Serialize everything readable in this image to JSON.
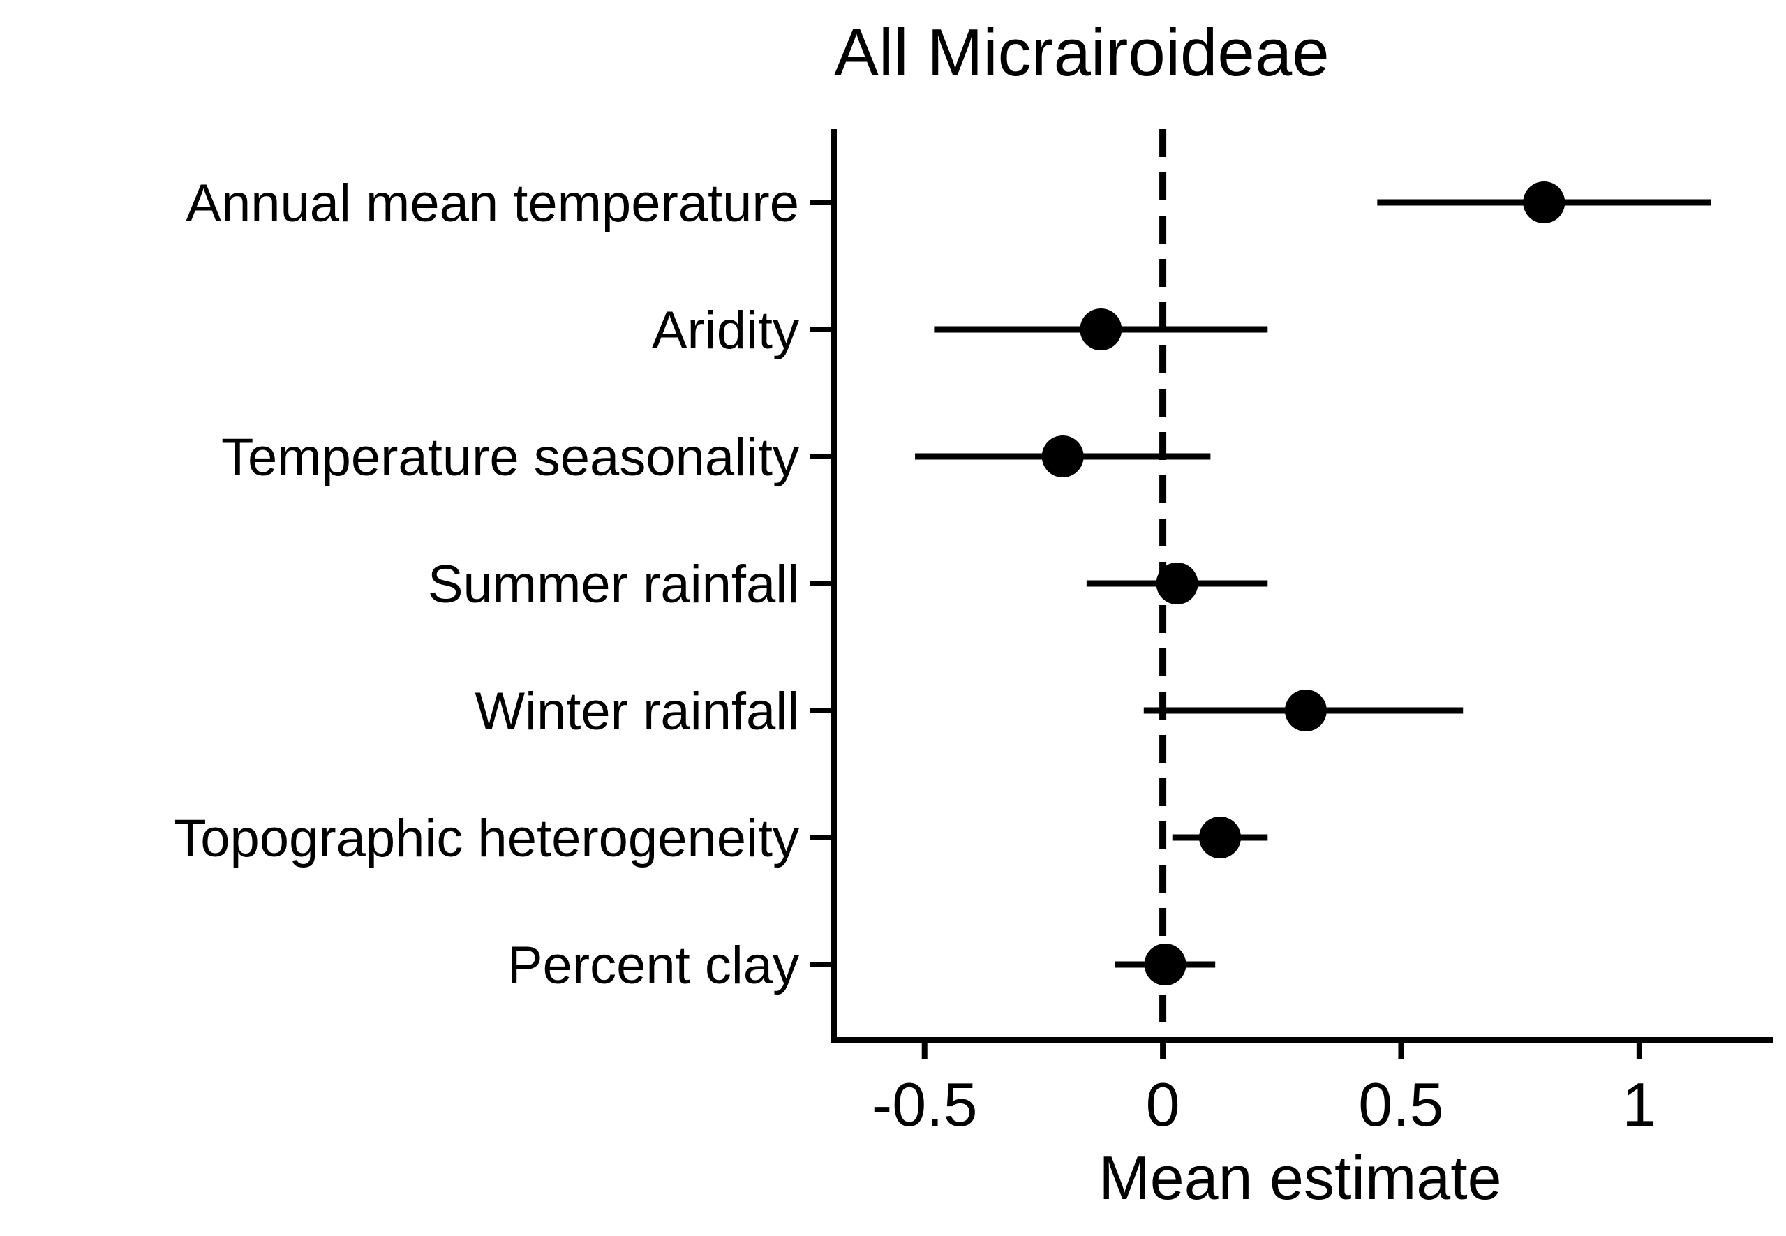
{
  "chart_data": {
    "type": "forest",
    "title": "All Micrairoideae",
    "xlabel": "Mean estimate",
    "ylabel": "",
    "xlim": [
      -0.69,
      1.28
    ],
    "xticks": [
      -0.5,
      0,
      0.5,
      1
    ],
    "xtick_labels": [
      "-0.5",
      "0",
      "0.5",
      "1"
    ],
    "reference_line": {
      "x": 0,
      "style": "dashed"
    },
    "grid": false,
    "legend": "none",
    "series": [
      {
        "points": [
          {
            "label": "Annual mean temperature",
            "estimate": 0.8,
            "lower": 0.45,
            "upper": 1.15
          },
          {
            "label": "Aridity",
            "estimate": -0.13,
            "lower": -0.48,
            "upper": 0.22
          },
          {
            "label": "Temperature seasonality",
            "estimate": -0.21,
            "lower": -0.52,
            "upper": 0.1
          },
          {
            "label": "Summer rainfall",
            "estimate": 0.03,
            "lower": -0.16,
            "upper": 0.22
          },
          {
            "label": "Winter rainfall",
            "estimate": 0.3,
            "lower": -0.04,
            "upper": 0.63
          },
          {
            "label": "Topographic heterogeneity",
            "estimate": 0.12,
            "lower": 0.02,
            "upper": 0.22
          },
          {
            "label": "Percent clay",
            "estimate": 0.005,
            "lower": -0.1,
            "upper": 0.11
          }
        ]
      }
    ]
  }
}
